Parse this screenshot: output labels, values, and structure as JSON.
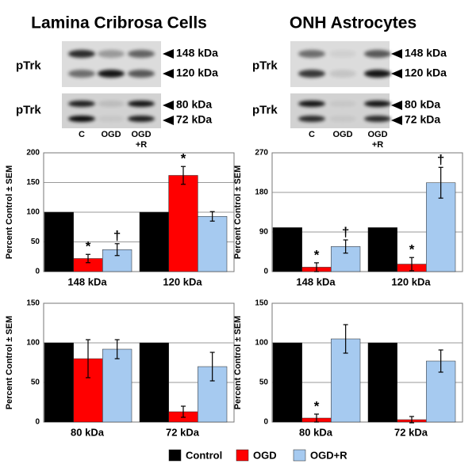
{
  "panels": [
    {
      "title": "Lamina Cribrosa Cells",
      "blots": [
        {
          "label": "pTrk",
          "markers": [
            "148 kDa",
            "120 kDa"
          ]
        },
        {
          "label": "pTrk",
          "markers": [
            "80 kDa",
            "72 kDa"
          ]
        }
      ],
      "lanes": [
        [
          "C"
        ],
        [
          "OGD"
        ],
        [
          "OGD",
          "+R"
        ]
      ]
    },
    {
      "title": "ONH Astrocytes",
      "blots": [
        {
          "label": "pTrk",
          "markers": [
            "148 kDa",
            "120 kDa"
          ]
        },
        {
          "label": "pTrk",
          "markers": [
            "80 kDa",
            "72 kDa"
          ]
        }
      ],
      "lanes": [
        [
          "C"
        ],
        [
          "OGD"
        ],
        [
          "OGD",
          "+R"
        ]
      ]
    }
  ],
  "chart_data": [
    {
      "type": "bar",
      "ylabel": "Percent Control ± SEM",
      "categories": [
        "148 kDa",
        "120 kDa"
      ],
      "ylim": [
        0,
        200
      ],
      "yticks": [
        0,
        50,
        100,
        150,
        200
      ],
      "grid": true,
      "series": [
        {
          "name": "Control",
          "color": "#000000",
          "values": [
            100,
            100
          ]
        },
        {
          "name": "OGD",
          "color": "#ff0000",
          "values": [
            22,
            162
          ],
          "errors": [
            7,
            15
          ]
        },
        {
          "name": "OGD+R",
          "color": "#a6caf0",
          "values": [
            37,
            93
          ],
          "errors": [
            10,
            8
          ]
        }
      ],
      "annotations": [
        {
          "text": "*",
          "category": "148 kDa",
          "series": "OGD"
        },
        {
          "text": "†",
          "category": "148 kDa",
          "series": "OGD+R"
        },
        {
          "text": "*",
          "category": "120 kDa",
          "series": "OGD"
        }
      ]
    },
    {
      "type": "bar",
      "ylabel": "Percent Control ± SEM",
      "categories": [
        "148 kDa",
        "120 kDa"
      ],
      "ylim": [
        0,
        270
      ],
      "yticks": [
        0,
        90,
        180,
        270
      ],
      "grid": true,
      "series": [
        {
          "name": "Control",
          "color": "#000000",
          "values": [
            100,
            100
          ]
        },
        {
          "name": "OGD",
          "color": "#ff0000",
          "values": [
            10,
            17
          ],
          "errors": [
            10,
            15
          ]
        },
        {
          "name": "OGD+R",
          "color": "#a6caf0",
          "values": [
            57,
            202
          ],
          "errors": [
            15,
            35
          ]
        }
      ],
      "annotations": [
        {
          "text": "*",
          "category": "148 kDa",
          "series": "OGD"
        },
        {
          "text": "†",
          "category": "148 kDa",
          "series": "OGD+R"
        },
        {
          "text": "*",
          "category": "120 kDa",
          "series": "OGD"
        },
        {
          "text": "†",
          "category": "120 kDa",
          "series": "OGD+R"
        }
      ]
    },
    {
      "type": "bar",
      "ylabel": "Percent Control ± SEM",
      "categories": [
        "80 kDa",
        "72 kDa"
      ],
      "ylim": [
        0,
        150
      ],
      "yticks": [
        0,
        50,
        100,
        150
      ],
      "grid": true,
      "series": [
        {
          "name": "Control",
          "color": "#000000",
          "values": [
            100,
            100
          ]
        },
        {
          "name": "OGD",
          "color": "#ff0000",
          "values": [
            80,
            13
          ],
          "errors": [
            24,
            7
          ]
        },
        {
          "name": "OGD+R",
          "color": "#a6caf0",
          "values": [
            92,
            70
          ],
          "errors": [
            12,
            18
          ]
        }
      ],
      "annotations": []
    },
    {
      "type": "bar",
      "ylabel": "Percent Control ± SEM",
      "categories": [
        "80 kDa",
        "72 kDa"
      ],
      "ylim": [
        0,
        150
      ],
      "yticks": [
        0,
        50,
        100,
        150
      ],
      "grid": true,
      "series": [
        {
          "name": "Control",
          "color": "#000000",
          "values": [
            100,
            100
          ]
        },
        {
          "name": "OGD",
          "color": "#ff0000",
          "values": [
            5,
            3
          ],
          "errors": [
            5,
            4
          ]
        },
        {
          "name": "OGD+R",
          "color": "#a6caf0",
          "values": [
            105,
            77
          ],
          "errors": [
            18,
            14
          ]
        }
      ],
      "annotations": [
        {
          "text": "*",
          "category": "80 kDa",
          "series": "OGD"
        }
      ]
    }
  ]
}
